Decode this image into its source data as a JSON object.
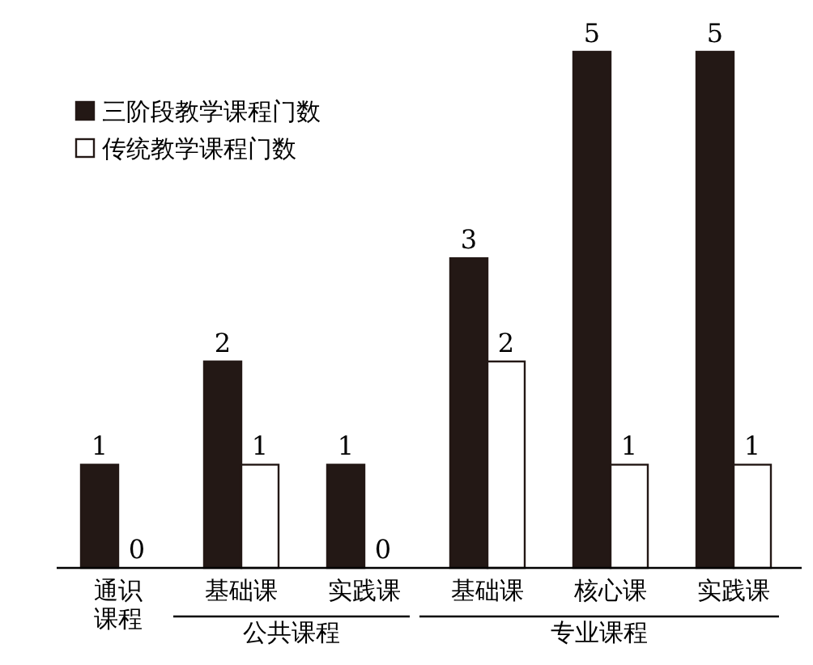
{
  "chart_data": {
    "type": "bar",
    "categories": [
      "通识课程",
      "基础课",
      "实践课",
      "基础课",
      "核心课",
      "实践课"
    ],
    "series": [
      {
        "name": "三阶段教学课程门数",
        "color": "#231815",
        "values": [
          1,
          2,
          1,
          3,
          5,
          5
        ]
      },
      {
        "name": "传统教学课程门数",
        "color": "#ffffff",
        "values": [
          0,
          1,
          0,
          2,
          1,
          1
        ]
      }
    ],
    "data_labels": true,
    "legend": "top left",
    "annotations": [
      "公共课程",
      "专业课程"
    ]
  }
}
